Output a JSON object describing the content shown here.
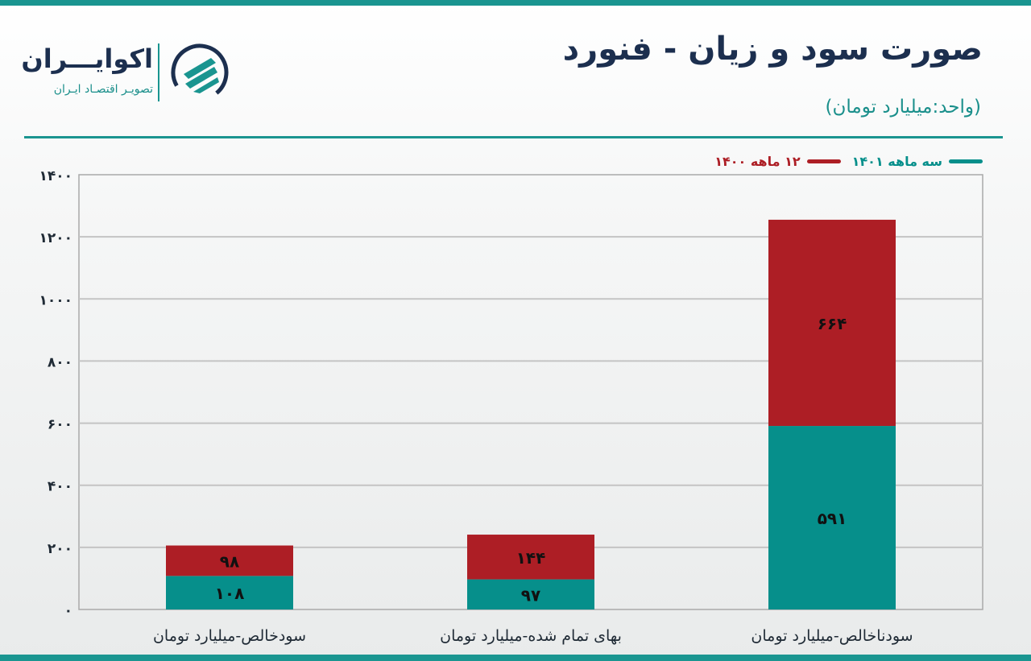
{
  "header": {
    "title": "صورت سود و زیان - فنورد",
    "unit": "(واحد:میلیارد تومان)"
  },
  "logo": {
    "name": "اکوایـــران",
    "tagline": "تصویـر اقتصـاد ایـران"
  },
  "colors": {
    "accent": "#1a9590",
    "series_q1401": "#068f8b",
    "series_12m1400": "#ad1e25",
    "title": "#1c2f4f"
  },
  "chart_data": {
    "type": "bar",
    "stacked": true,
    "categories": [
      "سودناخالص-میلیارد تومان",
      "بهای تمام شده-میلیارد تومان",
      "سودخالص-میلیارد تومان"
    ],
    "series": [
      {
        "name": "سه ماهه ۱۴۰۱",
        "values": [
          591,
          97,
          108
        ],
        "labels": [
          "۵۹۱",
          "۹۷",
          "۱۰۸"
        ],
        "color": "#068f8b"
      },
      {
        "name": "۱۲ ماهه ۱۴۰۰",
        "values": [
          664,
          144,
          98
        ],
        "labels": [
          "۶۶۴",
          "۱۴۴",
          "۹۸"
        ],
        "color": "#ad1e25"
      }
    ],
    "ylim": [
      0,
      1400
    ],
    "yticks": [
      0,
      200,
      400,
      600,
      800,
      1000,
      1200,
      1400
    ],
    "ytick_labels": [
      "۰",
      "۲۰۰",
      "۴۰۰",
      "۶۰۰",
      "۸۰۰",
      "۱۰۰۰",
      "۱۲۰۰",
      "۱۴۰۰"
    ],
    "grid": true,
    "legend_position": "top-right",
    "category_order": "right-to-left"
  }
}
